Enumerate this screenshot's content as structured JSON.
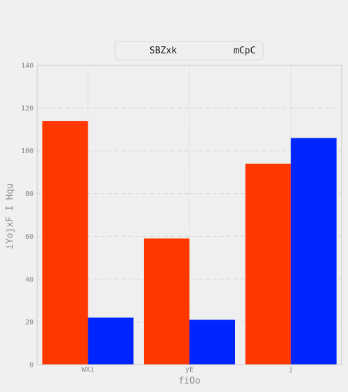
{
  "chart_data": {
    "type": "bar",
    "title": "",
    "xlabel": "fiOo",
    "ylabel": "iYojxF I  Hqu",
    "categories": [
      "WXi",
      "yE",
      "j"
    ],
    "series": [
      {
        "name": "SBZxk",
        "values": [
          114,
          59,
          94
        ],
        "color": "#ff3800"
      },
      {
        "name": "mCpC",
        "values": [
          22,
          21,
          106
        ],
        "color": "#0025ff"
      }
    ],
    "ylim": [
      0,
      140
    ],
    "yticks": [
      0,
      20,
      40,
      60,
      80,
      100,
      120,
      140
    ],
    "grid": true,
    "legend_position": "top-center"
  },
  "colors": {
    "background": "#f0f0f0",
    "plot_background": "#efefef",
    "grid": "#d8d8d8",
    "axis_text": "#8c8c8c"
  }
}
